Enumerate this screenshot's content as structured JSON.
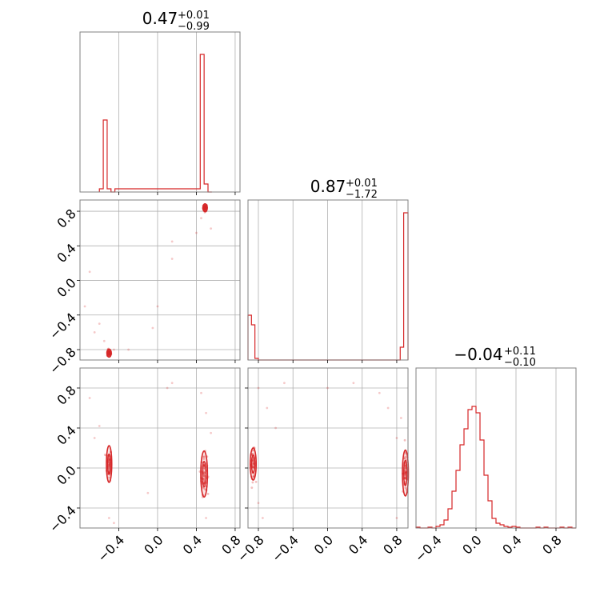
{
  "colors": {
    "series": "#d62728",
    "grid": "#b0b0b0",
    "frame": "#808080"
  },
  "chart_data": {
    "type": "corner",
    "parameters": [
      {
        "title": {
          "median": "0.47",
          "upper": "+0.01",
          "lower": "−0.99"
        }
      },
      {
        "title": {
          "median": "0.87",
          "upper": "+0.01",
          "lower": "−1.72"
        }
      },
      {
        "title": {
          "median": "−0.04",
          "upper": "+0.11",
          "lower": "−0.10"
        }
      }
    ],
    "ticks": {
      "p0": [
        "−0.4",
        "0.0",
        "0.4",
        "0.8"
      ],
      "p1": [
        "−0.8",
        "−0.4",
        "0.0",
        "0.4",
        "0.8"
      ],
      "p2": [
        "−0.4",
        "0.0",
        "0.4",
        "0.8"
      ]
    },
    "ranges": {
      "p0": [
        -0.8,
        0.85
      ],
      "p1": [
        -0.92,
        0.93
      ],
      "p2": [
        -0.6,
        1.0
      ]
    },
    "histograms": {
      "p0": {
        "bin_edges": [
          -0.6,
          -0.56,
          -0.52,
          -0.48,
          -0.44,
          0.44,
          0.48,
          0.52,
          0.56
        ],
        "counts": [
          0.02,
          0.45,
          0.02,
          0,
          0.02,
          0.86,
          0.05,
          0
        ]
      },
      "p1": {
        "bin_edges": [
          -0.92,
          -0.88,
          -0.84,
          -0.8,
          0.84,
          0.88,
          0.92,
          0.93
        ],
        "counts": [
          0.28,
          0.22,
          0.01,
          0,
          0.08,
          0.92,
          0.92
        ]
      },
      "p2": {
        "bin_edges": [
          -0.6,
          -0.56,
          -0.52,
          -0.48,
          -0.44,
          -0.4,
          -0.36,
          -0.32,
          -0.28,
          -0.24,
          -0.2,
          -0.16,
          -0.12,
          -0.08,
          -0.04,
          0.0,
          0.04,
          0.08,
          0.12,
          0.16,
          0.2,
          0.24,
          0.28,
          0.32,
          0.36,
          0.4,
          0.44,
          0.48,
          0.52,
          0.56,
          0.6,
          0.64,
          0.68,
          0.72,
          0.76,
          0.8,
          0.84,
          0.88,
          0.92,
          0.96,
          1.0
        ],
        "counts": [
          0.005,
          0.0,
          0.0,
          0.005,
          0.0,
          0.01,
          0.02,
          0.05,
          0.12,
          0.23,
          0.36,
          0.52,
          0.62,
          0.74,
          0.76,
          0.72,
          0.55,
          0.33,
          0.17,
          0.06,
          0.03,
          0.02,
          0.01,
          0.005,
          0.01,
          0.005,
          0.0,
          0.0,
          0.0,
          0.0,
          0.005,
          0.0,
          0.005,
          0.0,
          0.0,
          0.0,
          0.005,
          0.0,
          0.005,
          0.0
        ]
      }
    },
    "scatter": {
      "p1_vs_p0": {
        "clusters": [
          {
            "x": 0.49,
            "y": 0.84,
            "sx": 0.01,
            "sy": 0.02,
            "n": 70
          },
          {
            "x": -0.5,
            "y": -0.84,
            "sx": 0.01,
            "sy": 0.02,
            "n": 50
          }
        ],
        "outliers": [
          [
            -0.75,
            -0.3
          ],
          [
            -0.7,
            0.1
          ],
          [
            -0.6,
            -0.5
          ],
          [
            -0.55,
            -0.7
          ],
          [
            -0.45,
            -0.8
          ],
          [
            -0.3,
            -0.8
          ],
          [
            0.15,
            0.45
          ],
          [
            0.15,
            0.25
          ],
          [
            0.0,
            -0.3
          ],
          [
            -0.05,
            -0.55
          ],
          [
            0.4,
            0.55
          ],
          [
            0.45,
            0.72
          ],
          [
            -0.65,
            -0.6
          ],
          [
            0.55,
            0.6
          ]
        ]
      },
      "p2_vs_p0": {
        "clusters": [
          {
            "x": -0.5,
            "y": 0.04,
            "sx": 0.012,
            "sy": 0.08,
            "n": 60,
            "contour": [
              0.025,
              0.12
            ]
          },
          {
            "x": 0.48,
            "y": -0.06,
            "sx": 0.015,
            "sy": 0.1,
            "n": 80,
            "contour": [
              0.035,
              0.15
            ]
          }
        ],
        "outliers": [
          [
            -0.7,
            0.7
          ],
          [
            -0.65,
            0.3
          ],
          [
            -0.6,
            0.42
          ],
          [
            -0.5,
            -0.5
          ],
          [
            -0.45,
            -0.55
          ],
          [
            0.1,
            0.8
          ],
          [
            0.15,
            0.85
          ],
          [
            -0.1,
            -0.25
          ],
          [
            0.45,
            0.75
          ],
          [
            0.5,
            0.55
          ],
          [
            0.55,
            0.35
          ],
          [
            0.5,
            -0.5
          ]
        ]
      },
      "p2_vs_p1": {
        "clusters": [
          {
            "x": -0.86,
            "y": 0.04,
            "sx": 0.015,
            "sy": 0.07,
            "n": 60,
            "contour": [
              0.03,
              0.07
            ]
          },
          {
            "x": 0.9,
            "y": -0.05,
            "sx": 0.015,
            "sy": 0.1,
            "n": 70,
            "contour": [
              0.025,
              0.13
            ]
          }
        ],
        "outliers": [
          [
            -0.8,
            0.8
          ],
          [
            -0.7,
            0.6
          ],
          [
            -0.6,
            0.4
          ],
          [
            -0.5,
            0.85
          ],
          [
            0.0,
            0.8
          ],
          [
            0.3,
            0.85
          ],
          [
            0.6,
            0.75
          ],
          [
            0.7,
            0.6
          ],
          [
            0.8,
            0.3
          ],
          [
            0.85,
            0.5
          ],
          [
            -0.8,
            -0.35
          ],
          [
            0.8,
            -0.5
          ],
          [
            -0.75,
            -0.5
          ]
        ]
      }
    }
  }
}
